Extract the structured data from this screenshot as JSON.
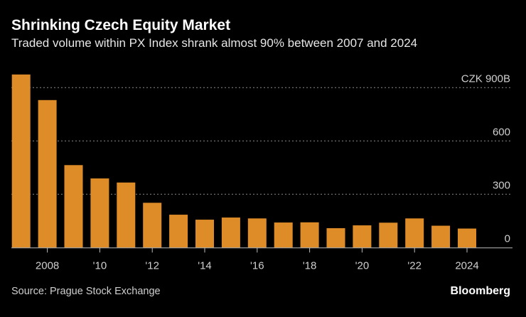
{
  "title": "Shrinking Czech Equity Market",
  "subtitle": "Traded volume within PX Index shrank almost 90% between 2007 and 2024",
  "source": "Source: Prague Stock Exchange",
  "brand": "Bloomberg",
  "colors": {
    "bar": "#de8c27",
    "background": "#000000",
    "grid": "#8a8a8a",
    "text": "#cfcfcf"
  },
  "chart_data": {
    "type": "bar",
    "title": "Shrinking Czech Equity Market",
    "xlabel": "",
    "ylabel": "CZK B",
    "categories": [
      "2007",
      "2008",
      "2009",
      "2010",
      "2011",
      "2012",
      "2013",
      "2014",
      "2015",
      "2016",
      "2017",
      "2018",
      "2019",
      "2020",
      "2021",
      "2022",
      "2023",
      "2024"
    ],
    "values": [
      974,
      830,
      464,
      389,
      366,
      252,
      185,
      157,
      169,
      164,
      141,
      142,
      109,
      125,
      140,
      164,
      123,
      107
    ],
    "ylim": [
      0,
      900
    ],
    "yticks": [
      {
        "value": 0,
        "label": "0"
      },
      {
        "value": 300,
        "label": "300"
      },
      {
        "value": 600,
        "label": "600"
      },
      {
        "value": 900,
        "label": "CZK 900B"
      }
    ],
    "xticks": [
      {
        "category": "2008",
        "label": "2008"
      },
      {
        "category": "2010",
        "label": "'10"
      },
      {
        "category": "2012",
        "label": "'12"
      },
      {
        "category": "2014",
        "label": "'14"
      },
      {
        "category": "2016",
        "label": "'16"
      },
      {
        "category": "2018",
        "label": "'18"
      },
      {
        "category": "2020",
        "label": "'20"
      },
      {
        "category": "2022",
        "label": "'22"
      },
      {
        "category": "2024",
        "label": "2024"
      }
    ],
    "grid": true
  }
}
